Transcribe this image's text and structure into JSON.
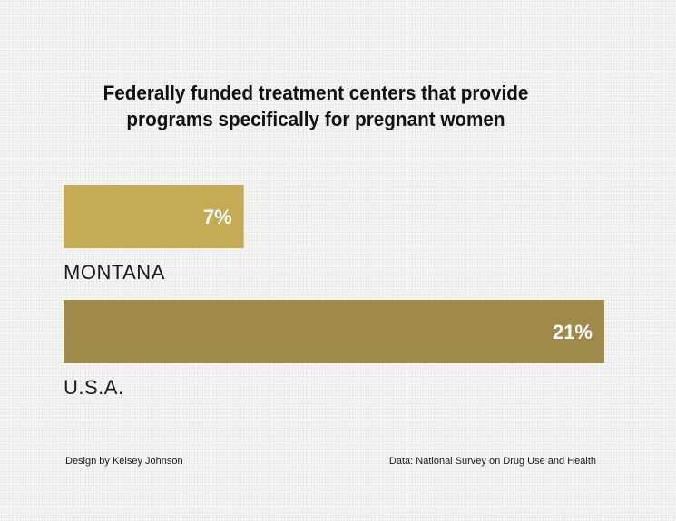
{
  "chart_data": {
    "type": "bar",
    "orientation": "horizontal",
    "title_lines": [
      "Federally funded treatment centers that provide",
      "programs specifically for pregnant women"
    ],
    "categories": [
      "MONTANA",
      "U.S.A."
    ],
    "values": [
      7,
      21
    ],
    "value_labels": [
      "7%",
      "21%"
    ],
    "unit": "%",
    "xlim": [
      0,
      21
    ],
    "bar_colors": [
      "#c5ab55",
      "#a08a49"
    ],
    "value_label_color": "#ffffff",
    "axes_visible": false,
    "grid": false,
    "legend": "none"
  },
  "footer": {
    "credit": "Design by Kelsey Johnson",
    "source": "Data: National Survey on Drug Use and Health"
  }
}
